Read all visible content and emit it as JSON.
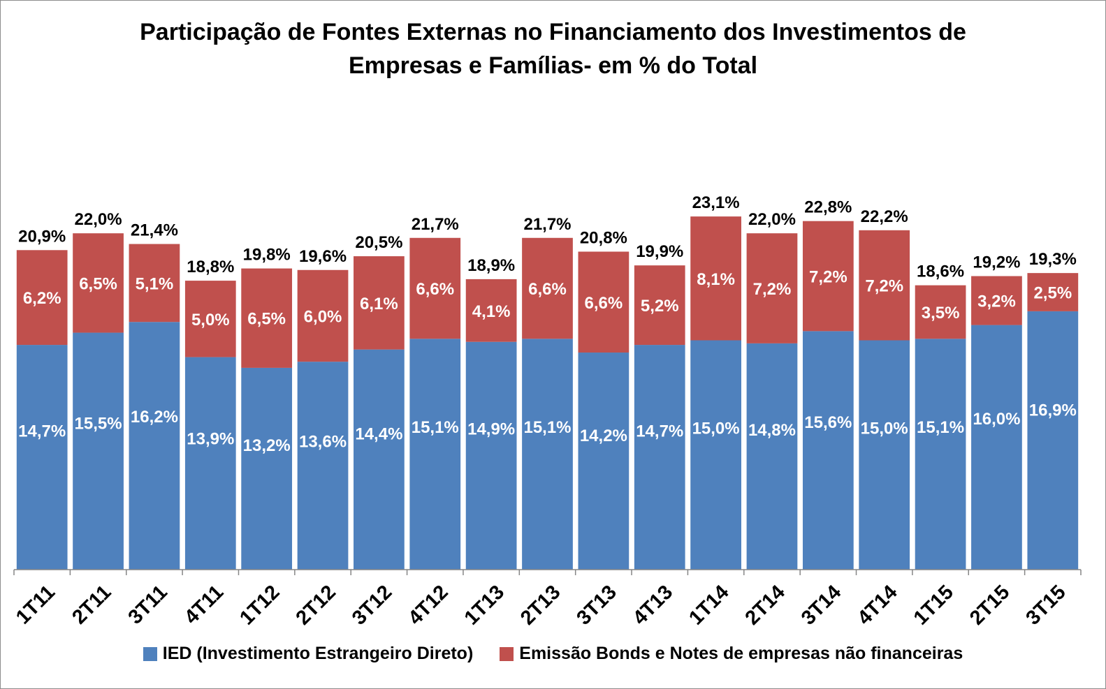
{
  "chart_data": {
    "type": "bar",
    "stacked": true,
    "title": "Participação de Fontes Externas no Financiamento dos Investimentos de Empresas e Famílias- em % do Total",
    "title_lines": [
      "Participação de Fontes Externas no Financiamento dos Investimentos de",
      "Empresas e Famílias- em % do Total"
    ],
    "categories": [
      "1T11",
      "2T11",
      "3T11",
      "4T11",
      "1T12",
      "2T12",
      "3T12",
      "4T12",
      "1T13",
      "2T13",
      "3T13",
      "4T13",
      "1T14",
      "2T14",
      "3T14",
      "4T14",
      "1T15",
      "2T15",
      "3T15"
    ],
    "series": [
      {
        "name": "IED (Investimento Estrangeiro Direto)",
        "color": "#4f81bd",
        "values": [
          14.7,
          15.5,
          16.2,
          13.9,
          13.2,
          13.6,
          14.4,
          15.1,
          14.9,
          15.1,
          14.2,
          14.7,
          15.0,
          14.8,
          15.6,
          15.0,
          15.1,
          16.0,
          16.9
        ],
        "labels": [
          "14,7%",
          "15,5%",
          "16,2%",
          "13,9%",
          "13,2%",
          "13,6%",
          "14,4%",
          "15,1%",
          "14,9%",
          "15,1%",
          "14,2%",
          "14,7%",
          "15,0%",
          "14,8%",
          "15,6%",
          "15,0%",
          "15,1%",
          "16,0%",
          "16,9%"
        ]
      },
      {
        "name": "Emissão Bonds e Notes de empresas não financeiras",
        "color": "#c0504d",
        "values": [
          6.2,
          6.5,
          5.1,
          5.0,
          6.5,
          6.0,
          6.1,
          6.6,
          4.1,
          6.6,
          6.6,
          5.2,
          8.1,
          7.2,
          7.2,
          7.2,
          3.5,
          3.2,
          2.5
        ],
        "labels": [
          "6,2%",
          "6,5%",
          "5,1%",
          "5,0%",
          "6,5%",
          "6,0%",
          "6,1%",
          "6,6%",
          "4,1%",
          "6,6%",
          "6,6%",
          "5,2%",
          "8,1%",
          "7,2%",
          "7,2%",
          "7,2%",
          "3,5%",
          "3,2%",
          "2,5%"
        ]
      }
    ],
    "totals": [
      20.9,
      22.0,
      21.4,
      18.8,
      19.8,
      19.6,
      20.5,
      21.7,
      18.9,
      21.7,
      20.8,
      19.9,
      23.1,
      22.0,
      22.8,
      22.2,
      18.6,
      19.2,
      19.3
    ],
    "total_labels": [
      "20,9%",
      "22,0%",
      "21,4%",
      "18,8%",
      "19,8%",
      "19,6%",
      "20,5%",
      "21,7%",
      "18,9%",
      "21,7%",
      "20,8%",
      "19,9%",
      "23,1%",
      "22,0%",
      "22,8%",
      "22,2%",
      "18,6%",
      "19,2%",
      "19,3%"
    ],
    "xlabel": "",
    "ylabel": "",
    "ylim": [
      0,
      40
    ],
    "grid": false,
    "legend_position": "bottom"
  }
}
